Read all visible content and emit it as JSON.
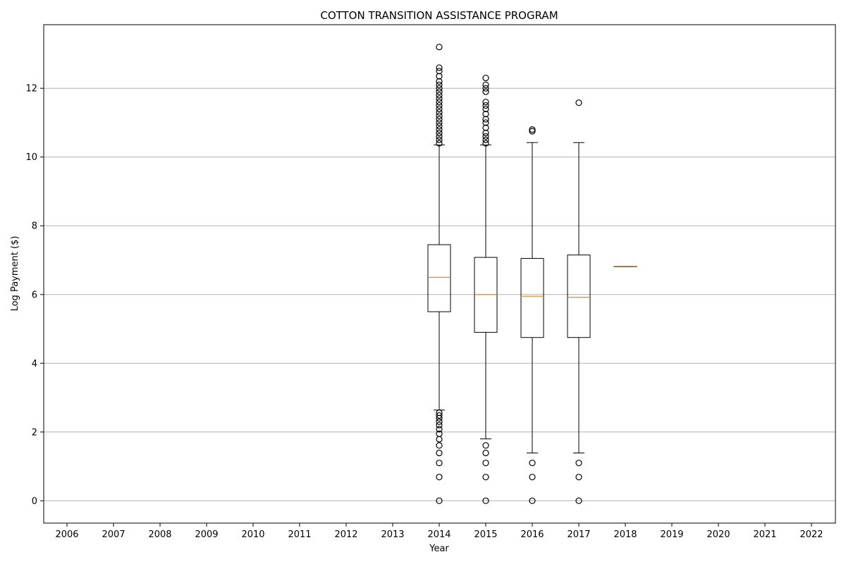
{
  "chart_data": {
    "type": "box",
    "title": "COTTON TRANSITION ASSISTANCE PROGRAM",
    "xlabel": "Year",
    "ylabel": "Log Payment ($)",
    "categories": [
      "2006",
      "2007",
      "2008",
      "2009",
      "2010",
      "2011",
      "2012",
      "2013",
      "2014",
      "2015",
      "2016",
      "2017",
      "2018",
      "2019",
      "2020",
      "2021",
      "2022"
    ],
    "ylim": [
      -0.65,
      13.85
    ],
    "yticks": [
      0,
      2,
      4,
      6,
      8,
      10,
      12
    ],
    "grid": "y",
    "boxes": [
      {
        "category": "2014",
        "whisker_low": 2.64,
        "q1": 5.5,
        "median": 6.5,
        "q3": 7.45,
        "whisker_high": 10.35,
        "outliers": [
          0,
          0.69,
          1.1,
          1.39,
          1.61,
          1.79,
          1.95,
          2.08,
          2.2,
          2.3,
          2.4,
          2.48,
          2.56,
          10.4,
          10.5,
          10.6,
          10.7,
          10.8,
          10.9,
          11.0,
          11.1,
          11.2,
          11.3,
          11.4,
          11.5,
          11.6,
          11.7,
          11.8,
          11.9,
          12.0,
          12.1,
          12.2,
          12.35,
          12.5,
          12.6,
          13.2
        ]
      },
      {
        "category": "2015",
        "whisker_low": 1.8,
        "q1": 4.9,
        "median": 6.0,
        "q3": 7.08,
        "whisker_high": 10.35,
        "outliers": [
          0,
          0.69,
          1.1,
          1.39,
          1.61,
          10.4,
          10.5,
          10.6,
          10.7,
          10.85,
          11.0,
          11.1,
          11.25,
          11.4,
          11.5,
          11.6,
          11.9,
          12.0,
          12.1,
          12.3
        ]
      },
      {
        "category": "2016",
        "whisker_low": 1.39,
        "q1": 4.75,
        "median": 5.95,
        "q3": 7.05,
        "whisker_high": 10.42,
        "outliers": [
          0,
          0.69,
          1.1,
          10.75,
          10.8
        ]
      },
      {
        "category": "2017",
        "whisker_low": 1.39,
        "q1": 4.75,
        "median": 5.92,
        "q3": 7.15,
        "whisker_high": 10.42,
        "outliers": [
          0,
          0.69,
          1.1,
          11.58
        ]
      },
      {
        "category": "2018",
        "whisker_low": 6.82,
        "q1": 6.82,
        "median": 6.82,
        "q3": 6.82,
        "whisker_high": 6.82,
        "outliers": []
      }
    ],
    "colors": {
      "box": "#000000",
      "median": "#ff7f0e",
      "grid": "#b0b0b0"
    }
  }
}
